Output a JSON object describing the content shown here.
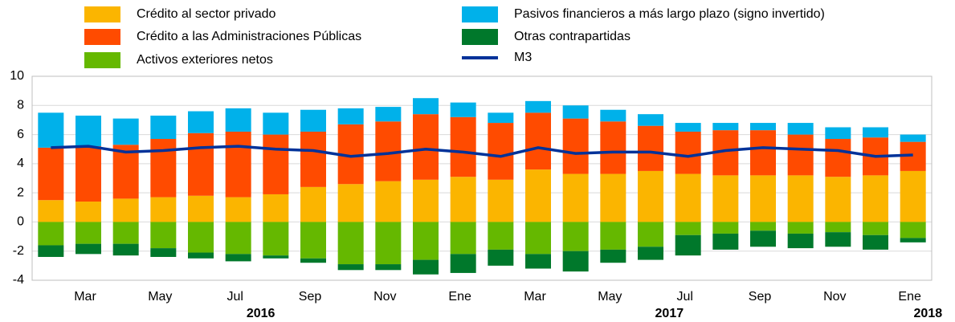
{
  "chart_data": {
    "type": "bar",
    "stacked": true,
    "categories": [
      null,
      "Mar",
      null,
      "May",
      null,
      "Jul",
      null,
      "Sep",
      null,
      "Nov",
      null,
      "Ene",
      null,
      "Mar",
      null,
      "May",
      null,
      "Jul",
      null,
      "Sep",
      null,
      "Nov",
      null,
      "Ene"
    ],
    "year_labels": [
      "2016",
      "2017",
      "2018"
    ],
    "ylim": [
      -4,
      10
    ],
    "yticks": [
      -4,
      -2,
      0,
      2,
      4,
      6,
      8,
      10
    ],
    "grid": true,
    "series": [
      {
        "name": "Crédito al sector privado",
        "color": "#fbb500",
        "values": [
          1.5,
          1.4,
          1.6,
          1.7,
          1.8,
          1.7,
          1.9,
          2.4,
          2.6,
          2.8,
          2.9,
          3.1,
          2.9,
          3.6,
          3.3,
          3.3,
          3.5,
          3.3,
          3.2,
          3.2,
          3.2,
          3.1,
          3.2,
          3.5
        ]
      },
      {
        "name": "Crédito a las Administraciones Públicas",
        "color": "#ff4b00",
        "values": [
          3.6,
          3.8,
          3.7,
          4.0,
          4.3,
          4.5,
          4.1,
          3.8,
          4.1,
          4.1,
          4.5,
          4.1,
          3.9,
          3.9,
          3.8,
          3.6,
          3.1,
          2.9,
          3.1,
          3.1,
          2.8,
          2.6,
          2.6,
          2.0
        ]
      },
      {
        "name": "Activos exteriores netos",
        "color": "#65b800",
        "values": [
          -1.6,
          -1.5,
          -1.5,
          -1.8,
          -2.1,
          -2.2,
          -2.3,
          -2.5,
          -2.9,
          -2.9,
          -2.6,
          -2.2,
          -1.9,
          -2.2,
          -2.0,
          -1.9,
          -1.7,
          -0.9,
          -0.8,
          -0.6,
          -0.8,
          -0.7,
          -0.9,
          -1.1
        ]
      },
      {
        "name": "Pasivos financieros a más largo plazo (signo invertido)",
        "color": "#00b1ea",
        "values": [
          2.4,
          2.1,
          1.8,
          1.6,
          1.5,
          1.6,
          1.5,
          1.5,
          1.1,
          1.0,
          1.1,
          1.0,
          0.7,
          0.8,
          0.9,
          0.8,
          0.8,
          0.6,
          0.5,
          0.5,
          0.8,
          0.8,
          0.7,
          0.5
        ]
      },
      {
        "name": "Otras contrapartidas",
        "color": "#00782b",
        "values": [
          -0.8,
          -0.7,
          -0.8,
          -0.6,
          -0.4,
          -0.5,
          -0.2,
          -0.3,
          -0.4,
          -0.4,
          -1.0,
          -1.3,
          -1.1,
          -1.0,
          -1.4,
          -0.9,
          -0.9,
          -1.4,
          -1.1,
          -1.1,
          -1.0,
          -1.0,
          -1.0,
          -0.3
        ]
      },
      {
        "name": "M3",
        "type": "line",
        "color": "#003299",
        "values": [
          5.1,
          5.2,
          4.8,
          4.9,
          5.1,
          5.2,
          5.0,
          4.9,
          4.5,
          4.7,
          5.0,
          4.8,
          4.5,
          5.1,
          4.7,
          4.8,
          4.8,
          4.5,
          4.9,
          5.1,
          5.0,
          4.9,
          4.5,
          4.6
        ]
      }
    ]
  }
}
